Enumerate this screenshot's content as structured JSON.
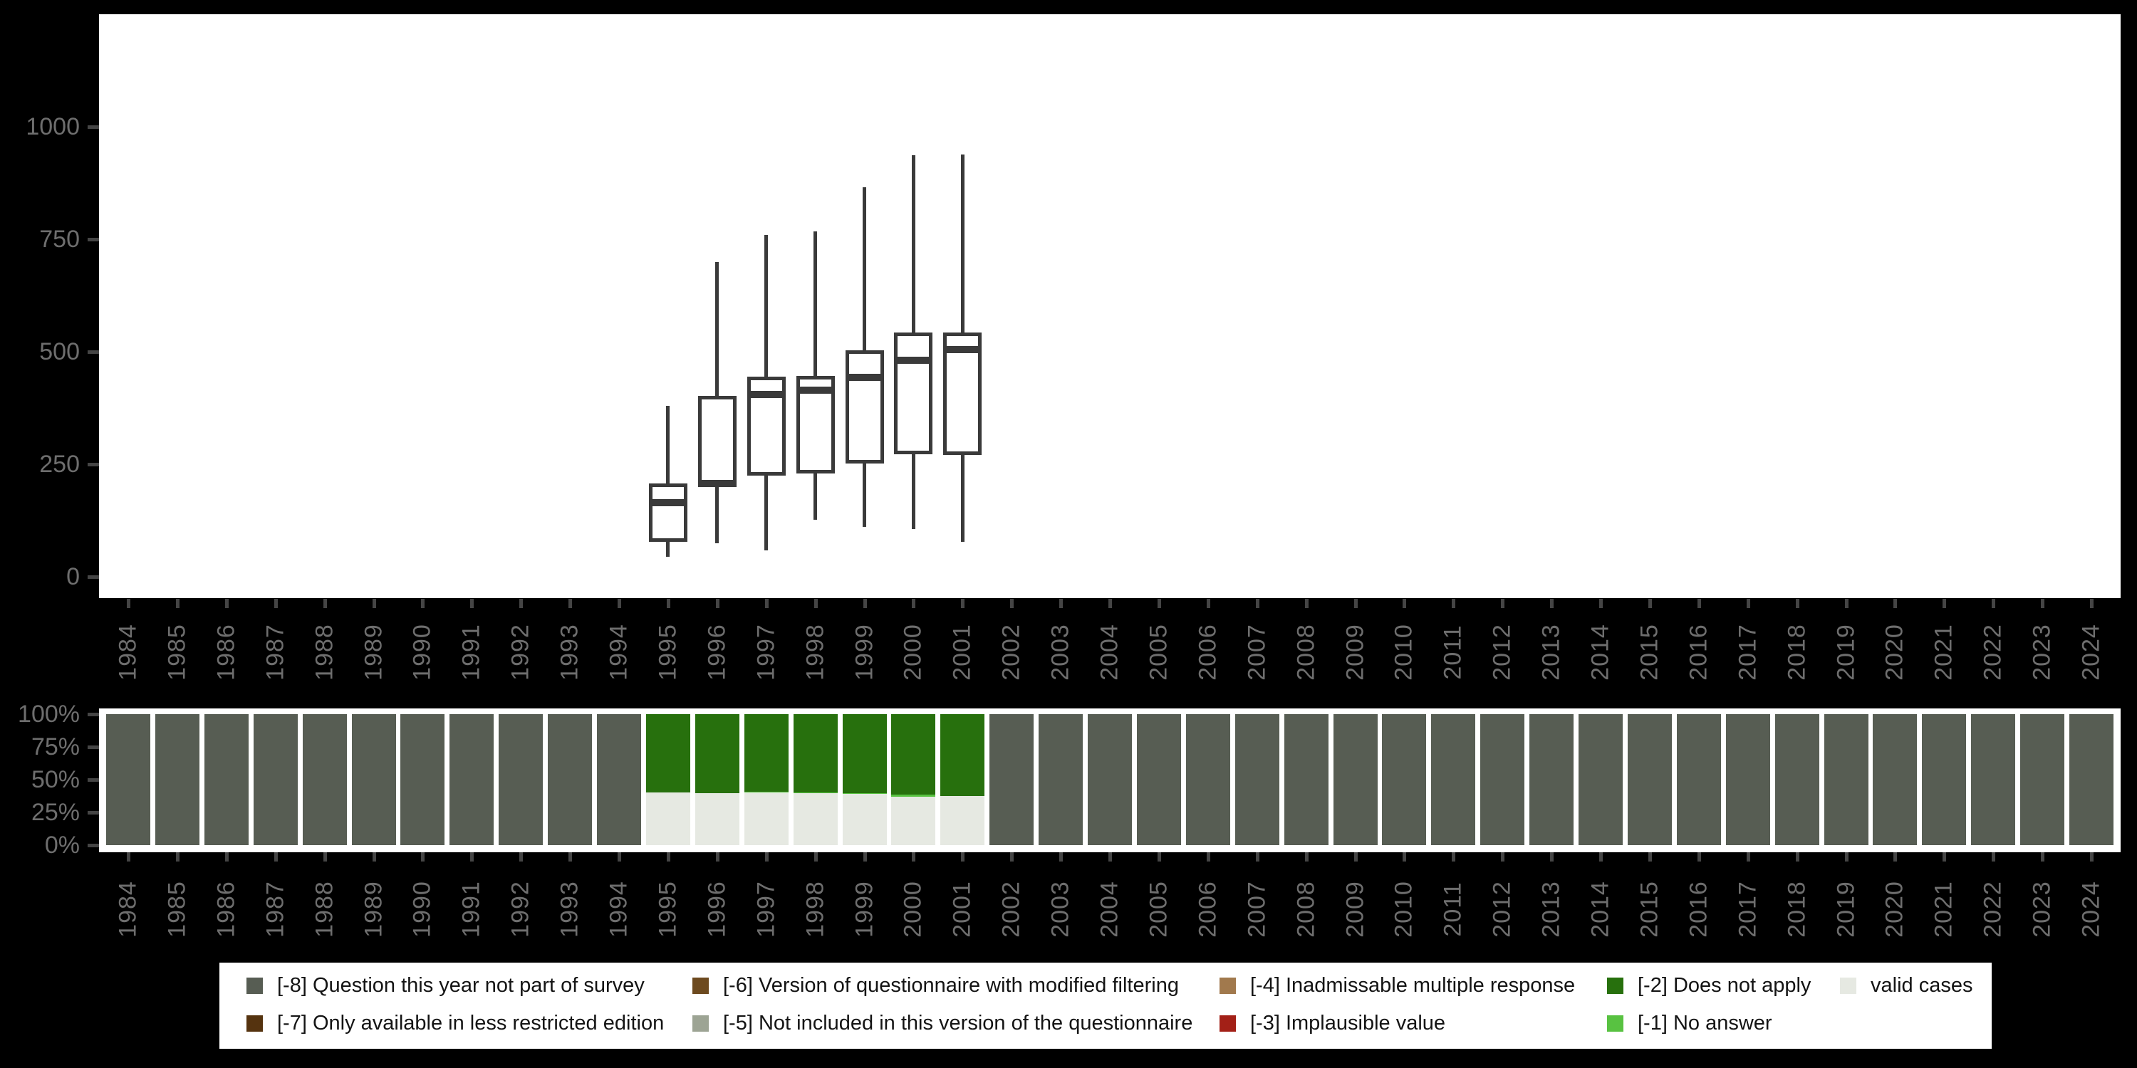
{
  "app": {
    "description": "Survey variable availability by year: boxplot of values per wave (top) and percentage of missing-value codes vs valid cases per wave (bottom)",
    "background": "#000000"
  },
  "years": [
    "1984",
    "1985",
    "1986",
    "1987",
    "1988",
    "1989",
    "1990",
    "1991",
    "1992",
    "1993",
    "1994",
    "1995",
    "1996",
    "1997",
    "1998",
    "1999",
    "2000",
    "2001",
    "2002",
    "2003",
    "2004",
    "2005",
    "2006",
    "2007",
    "2008",
    "2009",
    "2010",
    "2011",
    "2012",
    "2013",
    "2014",
    "2015",
    "2016",
    "2017",
    "2018",
    "2019",
    "2020",
    "2021",
    "2022",
    "2023",
    "2024"
  ],
  "chart_data": [
    {
      "name": "values-boxplot-by-year",
      "type": "boxplot",
      "title": "",
      "xlabel": "",
      "ylabel": "",
      "y_ticks": [
        "1000",
        "750",
        "500",
        "250",
        "0"
      ],
      "y_tick_values": [
        1000,
        750,
        500,
        250,
        0
      ],
      "ylim": [
        0,
        1260
      ],
      "grid": "off",
      "boxes": [
        {
          "year": "1995",
          "min": 45,
          "q1": 78,
          "median": 165,
          "q3": 207,
          "max": 380
        },
        {
          "year": "1996",
          "min": 75,
          "q1": 201,
          "median": 208,
          "q3": 402,
          "max": 700
        },
        {
          "year": "1997",
          "min": 58,
          "q1": 224,
          "median": 405,
          "q3": 444,
          "max": 760
        },
        {
          "year": "1998",
          "min": 127,
          "q1": 230,
          "median": 415,
          "q3": 446,
          "max": 768
        },
        {
          "year": "1999",
          "min": 110,
          "q1": 252,
          "median": 443,
          "q3": 503,
          "max": 866
        },
        {
          "year": "2000",
          "min": 106,
          "q1": 272,
          "median": 481,
          "q3": 542,
          "max": 937
        },
        {
          "year": "2001",
          "min": 78,
          "q1": 271,
          "median": 505,
          "q3": 542,
          "max": 938
        }
      ]
    },
    {
      "name": "missing-codes-stacked-bars",
      "type": "bar",
      "stacked": true,
      "unit": "percent",
      "title": "",
      "y_ticks": [
        "100%",
        "75%",
        "50%",
        "25%",
        "0%"
      ],
      "y_tick_values": [
        100,
        75,
        50,
        25,
        0
      ],
      "ylim": [
        0,
        100
      ],
      "stack_order_top_to_bottom": [
        "code_-8",
        "code_-7",
        "code_-6",
        "code_-5",
        "code_-4",
        "code_-3",
        "code_-2",
        "code_-1",
        "valid"
      ],
      "default_segments": {
        "code_-8": 100
      },
      "bars_by_year": {
        "1995": {
          "code_-2": 60.0,
          "valid": 40.0
        },
        "1996": {
          "code_-2": 60.5,
          "valid": 39.5
        },
        "1997": {
          "code_-2": 59.0,
          "code_-1": 1.0,
          "valid": 40.0
        },
        "1998": {
          "code_-2": 60.0,
          "code_-1": 0.5,
          "valid": 39.5
        },
        "1999": {
          "code_-2": 60.5,
          "code_-1": 0.5,
          "valid": 39.0
        },
        "2000": {
          "code_-2": 61.5,
          "code_-1": 1.5,
          "valid": 37.0
        },
        "2001": {
          "code_-2": 62.5,
          "valid": 37.5
        }
      }
    }
  ],
  "legend": {
    "rows": [
      [
        {
          "key": "code_-8",
          "label": "[-8] Question this year not part of survey"
        },
        {
          "key": "code_-6",
          "label": "[-6] Version of questionnaire with modified filtering"
        },
        {
          "key": "code_-4",
          "label": "[-4] Inadmissable multiple response"
        },
        {
          "key": "code_-2",
          "label": "[-2] Does not apply"
        },
        {
          "key": "valid",
          "label": "valid cases"
        }
      ],
      [
        {
          "key": "code_-7",
          "label": "[-7] Only available in less restricted edition"
        },
        {
          "key": "code_-5",
          "label": "[-5] Not included in this version of the questionnaire"
        },
        {
          "key": "code_-3",
          "label": "[-3] Implausible value"
        },
        {
          "key": "code_-1",
          "label": "[-1] No answer"
        }
      ]
    ]
  },
  "colors": {
    "background": "#000000",
    "panel": "#ffffff",
    "axis_text": "#6e6e6e",
    "tick_mark": "#454545",
    "box_stroke": "#3a3a3a",
    "legend_text": "#141414",
    "code_-8": "#575d53",
    "code_-7": "#55330f",
    "code_-6": "#6d4a1f",
    "code_-5": "#9da494",
    "code_-4": "#a1794d",
    "code_-3": "#a32017",
    "code_-2": "#27700d",
    "code_-1": "#58c241",
    "valid": "#e6e9e2"
  }
}
